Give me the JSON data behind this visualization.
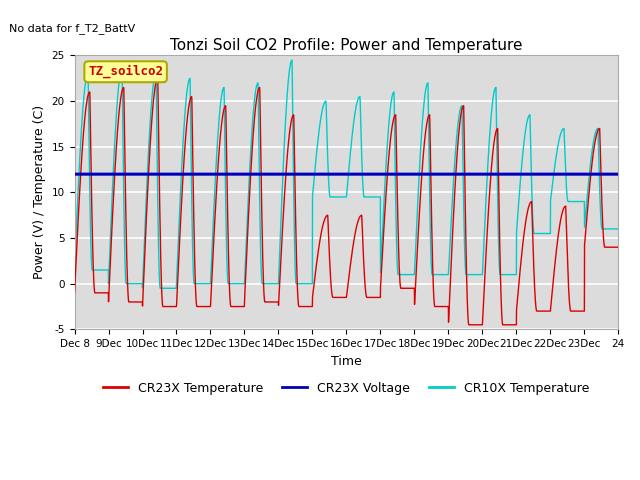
{
  "title": "Tonzi Soil CO2 Profile: Power and Temperature",
  "no_data_label": "No data for f_T2_BattV",
  "legend_box_label": "TZ_soilco2",
  "xlabel": "Time",
  "ylabel": "Power (V) / Temperature (C)",
  "ylim": [
    -5,
    25
  ],
  "background_color": "#dcdcdc",
  "voltage_value": 12.0,
  "voltage_color": "#0000bb",
  "cr23x_color": "#dd0000",
  "cr10x_color": "#00cccc",
  "x_tick_labels": [
    "Dec 8",
    "9Dec",
    "10Dec",
    "11Dec",
    "12Dec",
    "13Dec",
    "14Dec",
    "15Dec",
    "16Dec",
    "17Dec",
    "18Dec",
    "19Dec",
    "20Dec",
    "21Dec",
    "22Dec",
    "23Dec",
    "24"
  ],
  "title_fontsize": 11,
  "axis_label_fontsize": 9,
  "tick_fontsize": 7.5,
  "legend_fontsize": 9,
  "cr23x_peaks": [
    21.0,
    21.5,
    22.5,
    20.5,
    19.5,
    21.5,
    18.5,
    7.5,
    7.5,
    18.5,
    18.5,
    19.5,
    17.0,
    9.0,
    8.5,
    17.0
  ],
  "cr23x_troughs": [
    -1.0,
    -2.0,
    -2.5,
    -2.5,
    -2.5,
    -2.0,
    -2.5,
    -1.5,
    -1.5,
    -0.5,
    -2.5,
    -4.5,
    -4.5,
    -3.0,
    -3.0,
    4.0
  ],
  "cr10x_peaks": [
    23.0,
    23.5,
    23.0,
    22.5,
    21.5,
    22.0,
    24.5,
    20.0,
    20.5,
    21.0,
    22.0,
    19.5,
    21.5,
    18.5,
    17.0,
    17.0
  ],
  "cr10x_troughs": [
    1.5,
    0.0,
    -0.5,
    0.0,
    0.0,
    0.0,
    0.0,
    9.5,
    9.5,
    1.0,
    1.0,
    1.0,
    1.0,
    5.5,
    9.0,
    6.0
  ]
}
